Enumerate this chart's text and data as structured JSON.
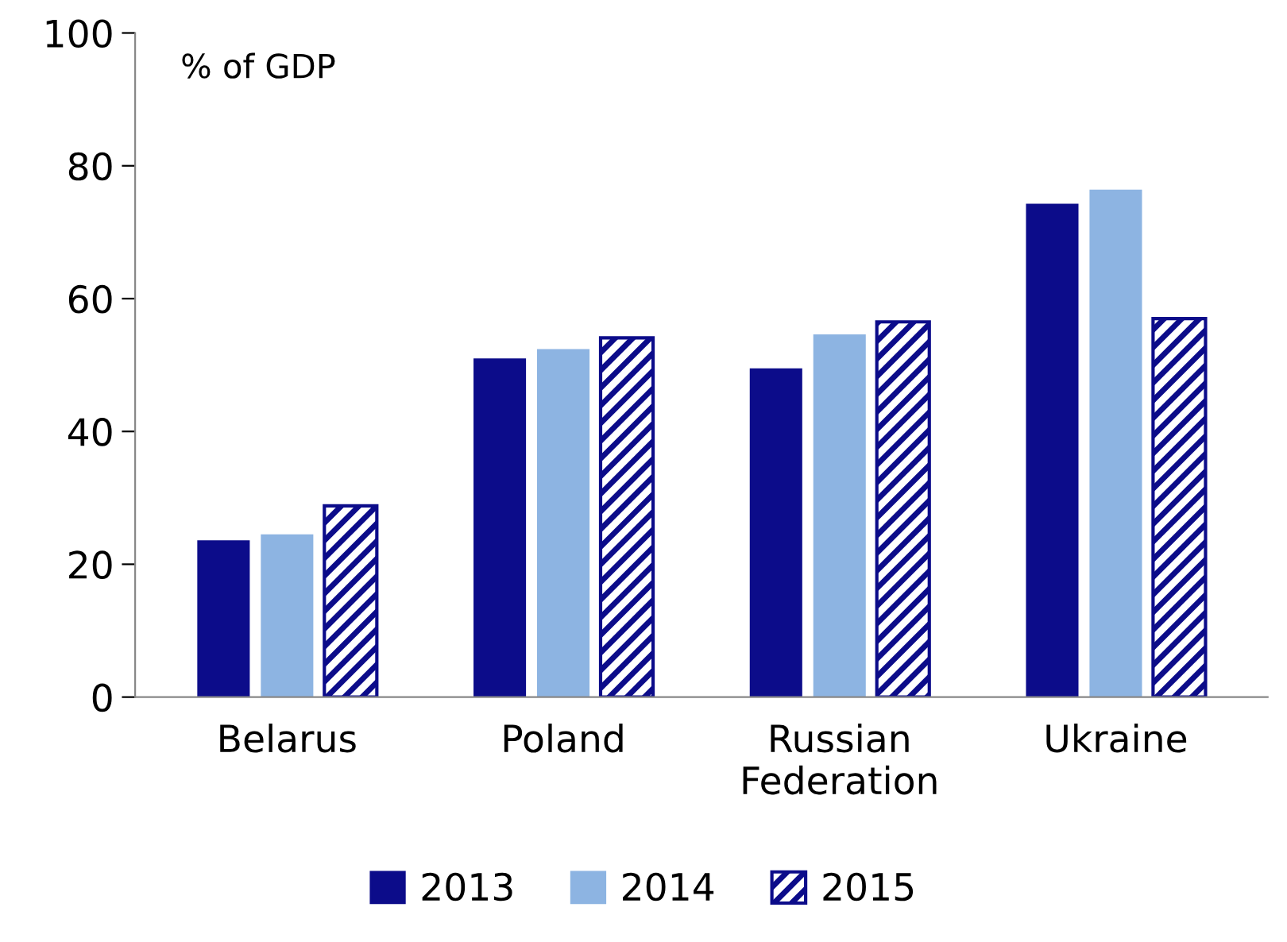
{
  "chart_data": {
    "type": "bar",
    "ylabel": "% of GDP",
    "categories": [
      "Belarus",
      "Poland",
      "Russian Federation",
      "Ukraine"
    ],
    "series": [
      {
        "name": "2013",
        "color": "#0c0c8a",
        "values": [
          23.6,
          51.0,
          49.5,
          74.3
        ]
      },
      {
        "name": "2014",
        "color": "#8db4e2",
        "values": [
          24.5,
          52.4,
          54.6,
          76.4
        ]
      },
      {
        "name": "2015",
        "color": "#0c0c8a",
        "values": [
          28.8,
          54.1,
          56.5,
          57.0
        ]
      }
    ],
    "ylim": [
      0,
      100
    ],
    "yticks": [
      0,
      20,
      40,
      60,
      80,
      100
    ],
    "grid": false,
    "legend": "bottom"
  }
}
